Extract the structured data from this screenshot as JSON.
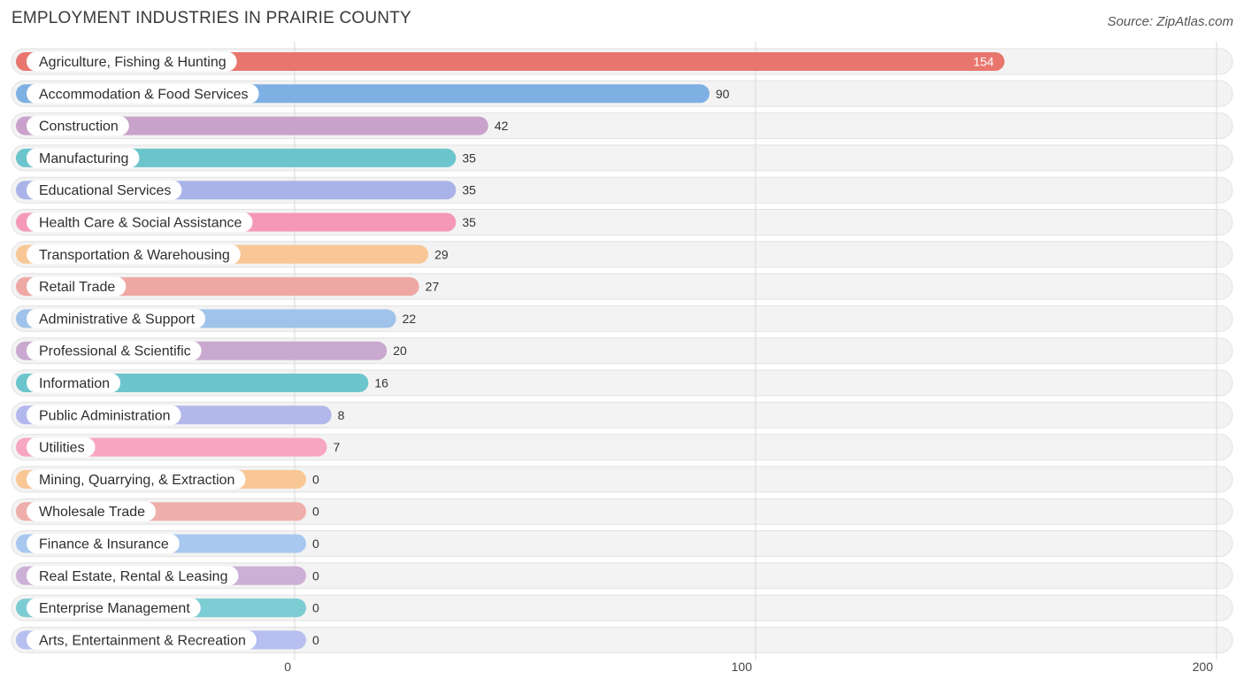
{
  "header": {
    "title": "EMPLOYMENT INDUSTRIES IN PRAIRIE COUNTY",
    "source": "Source: ZipAtlas.com"
  },
  "chart_data": {
    "type": "bar",
    "orientation": "horizontal",
    "title": "EMPLOYMENT INDUSTRIES IN PRAIRIE COUNTY",
    "categories": [
      "Agriculture, Fishing & Hunting",
      "Accommodation & Food Services",
      "Construction",
      "Manufacturing",
      "Educational Services",
      "Health Care & Social Assistance",
      "Transportation & Warehousing",
      "Retail Trade",
      "Administrative & Support",
      "Professional & Scientific",
      "Information",
      "Public Administration",
      "Utilities",
      "Mining, Quarrying, & Extraction",
      "Wholesale Trade",
      "Finance & Insurance",
      "Real Estate, Rental & Leasing",
      "Enterprise Management",
      "Arts, Entertainment & Recreation"
    ],
    "values": [
      154,
      90,
      42,
      35,
      35,
      35,
      29,
      27,
      22,
      20,
      16,
      8,
      7,
      0,
      0,
      0,
      0,
      0,
      0
    ],
    "colors": [
      "#e8766f",
      "#7fb0e3",
      "#c9a2cb",
      "#6cc5cc",
      "#aab3e8",
      "#f598b8",
      "#f9c795",
      "#eea8a4",
      "#9fc3ea",
      "#c9a9d0",
      "#6cc5cc",
      "#b3b8ec",
      "#f7a6c2",
      "#f9c795",
      "#eeaeab",
      "#a8c8ef",
      "#cdb0d6",
      "#7ccdd3",
      "#b7bff0"
    ],
    "xticks": [
      0,
      100,
      200
    ],
    "xlim": [
      0,
      200
    ],
    "grid": true
  }
}
